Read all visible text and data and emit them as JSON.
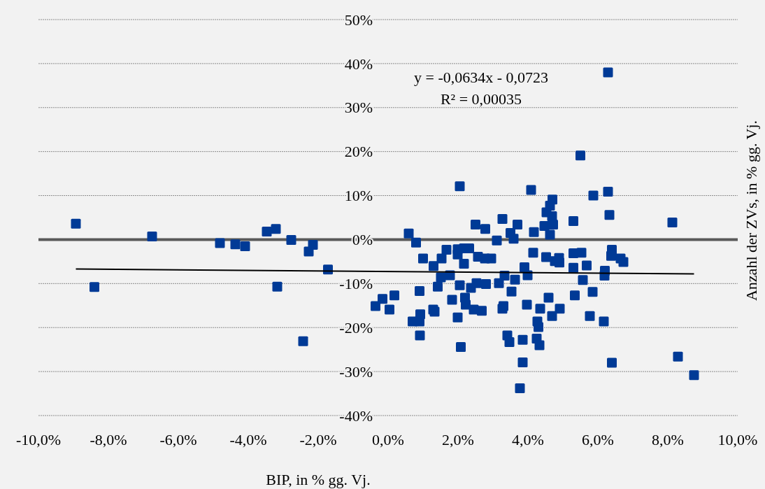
{
  "chart_data": {
    "type": "scatter",
    "xlabel": "BIP, in % gg. Vj.",
    "ylabel": "Anzahl der ZVs, in % gg. Vj.",
    "xlim": [
      -10,
      10
    ],
    "ylim": [
      -40,
      50
    ],
    "xticks": [
      {
        "value": -10,
        "label": "-10,0%"
      },
      {
        "value": -8,
        "label": "-8,0%"
      },
      {
        "value": -6,
        "label": "-6,0%"
      },
      {
        "value": -4,
        "label": "-4,0%"
      },
      {
        "value": -2,
        "label": "-2,0%"
      },
      {
        "value": 0,
        "label": "0,0%"
      },
      {
        "value": 2,
        "label": "2,0%"
      },
      {
        "value": 4,
        "label": "4,0%"
      },
      {
        "value": 6,
        "label": "6,0%"
      },
      {
        "value": 8,
        "label": "8,0%"
      },
      {
        "value": 10,
        "label": "10,0%"
      }
    ],
    "yticks": [
      {
        "value": -40,
        "label": "-40%"
      },
      {
        "value": -30,
        "label": "-30%"
      },
      {
        "value": -20,
        "label": "-20%"
      },
      {
        "value": -10,
        "label": "-10%"
      },
      {
        "value": 0,
        "label": "0%"
      },
      {
        "value": 10,
        "label": "10%"
      },
      {
        "value": 20,
        "label": "20%"
      },
      {
        "value": 30,
        "label": "30%"
      },
      {
        "value": 40,
        "label": "40%"
      },
      {
        "value": 50,
        "label": "50%"
      }
    ],
    "grid": "y",
    "marker": "square",
    "ref_lines": [
      {
        "axis": "y",
        "value": 0,
        "color": "#595959"
      }
    ],
    "annotations": [
      "y = -0,0634x - 0,0723",
      "R² = 0,00035"
    ],
    "series": [
      {
        "color": "#003a96",
        "x": [
          -8.93,
          -8.4,
          -6.75,
          -4.81,
          -4.37,
          -4.09,
          -3.47,
          -3.21,
          -3.17,
          -2.77,
          -2.27,
          -2.15,
          -1.72,
          -2.43,
          -0.36,
          -0.16,
          0.04,
          0.18,
          0.59,
          0.8,
          2.05,
          2.5,
          2.78,
          3.27,
          3.11,
          1.67,
          1.99,
          1.99,
          2.17,
          2.32,
          1.0,
          1.53,
          2.17,
          2.57,
          2.77,
          2.95,
          1.3,
          1.77,
          1.51,
          1.42,
          2.05,
          2.37,
          2.53,
          2.8,
          3.17,
          3.33,
          3.63,
          3.53,
          0.9,
          1.83,
          2.2,
          2.22,
          1.29,
          1.33,
          2.45,
          2.68,
          3.3,
          3.27,
          0.92,
          0.7,
          0.9,
          1.99,
          0.91,
          3.41,
          3.47,
          2.08,
          4.09,
          5.87,
          6.29,
          4.7,
          4.63,
          4.53,
          4.69,
          6.33,
          5.3,
          3.7,
          4.47,
          4.72,
          4.17,
          3.5,
          4.63,
          3.59,
          4.15,
          4.52,
          4.77,
          4.9,
          4.89,
          5.3,
          5.53,
          6.4,
          6.38,
          5.3,
          5.68,
          3.9,
          3.99,
          6.2,
          6.19,
          5.57,
          5.34,
          5.85,
          4.59,
          3.97,
          4.35,
          4.91,
          4.69,
          4.27,
          4.3,
          5.77,
          6.17,
          3.85,
          4.25,
          4.33,
          3.85,
          6.4,
          3.77,
          6.29,
          5.5,
          8.13,
          8.29,
          8.75,
          6.73,
          6.65
        ],
        "values": [
          3.6,
          -10.8,
          0.7,
          -0.8,
          -1.1,
          -1.5,
          1.8,
          2.4,
          -10.7,
          -0.1,
          -2.7,
          -1.2,
          -6.8,
          -23.1,
          -15.1,
          -13.5,
          -15.9,
          -12.7,
          1.4,
          -0.7,
          12.1,
          3.4,
          2.4,
          4.7,
          -0.2,
          -2.3,
          -2.2,
          -3.4,
          -2.0,
          -2.0,
          -4.3,
          -4.3,
          -5.5,
          -3.9,
          -4.3,
          -4.3,
          -6.0,
          -8.1,
          -8.6,
          -10.7,
          -10.4,
          -11.0,
          -9.9,
          -10.1,
          -9.9,
          -8.2,
          -9.1,
          -11.8,
          -11.7,
          -13.7,
          -13.2,
          -14.8,
          -15.9,
          -16.4,
          -15.9,
          -16.2,
          -15.1,
          -15.7,
          -17.0,
          -18.6,
          -18.6,
          -17.7,
          -21.8,
          -21.8,
          -23.3,
          -24.4,
          11.3,
          10.0,
          10.9,
          9.1,
          7.7,
          6.2,
          5.3,
          5.6,
          4.2,
          3.4,
          3.1,
          3.4,
          1.7,
          1.5,
          1.1,
          0.2,
          -3.0,
          -4.0,
          -4.9,
          -5.2,
          -4.2,
          -3.1,
          -3.0,
          -2.3,
          -3.7,
          -6.4,
          -5.9,
          -6.3,
          -8.1,
          -7.1,
          -8.2,
          -9.2,
          -12.7,
          -11.9,
          -13.2,
          -14.8,
          -15.7,
          -15.7,
          -17.4,
          -18.6,
          -19.9,
          -17.4,
          -18.6,
          -22.8,
          -22.5,
          -24.0,
          -27.9,
          -28.0,
          -33.8,
          38.0,
          19.1,
          3.9,
          -26.6,
          -30.8,
          -5.1,
          -4.3
        ]
      },
      {
        "type": "line",
        "color": "#000000",
        "marker": "none",
        "x": [
          -8.93,
          8.75
        ],
        "values": [
          -6.7,
          -7.8
        ]
      }
    ]
  }
}
